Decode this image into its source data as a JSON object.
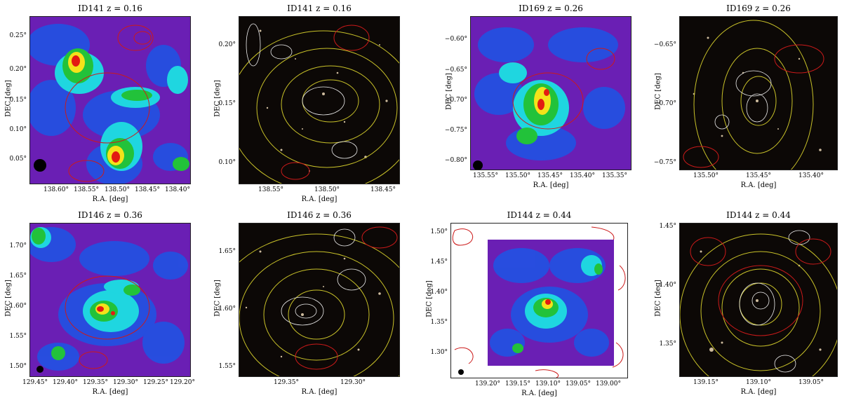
{
  "panels": [
    {
      "title": "ID141    z = 0.16",
      "kind": "density",
      "ylabel": "DEC [deg]",
      "xlabel": "R.A. [deg]",
      "yticks": [
        "0.25°",
        "0.20°",
        "0.15°",
        "0.10°",
        "0.05°"
      ],
      "xticks": [
        "138.60°",
        "138.55°",
        "138.50°",
        "138.45°",
        "138.40°"
      ]
    },
    {
      "title": "ID141    z = 0.16",
      "kind": "optical",
      "ylabel": "DEC [deg]",
      "xlabel": "R.A. [deg]",
      "yticks": [
        "0.20°",
        "0.15°",
        "0.10°"
      ],
      "xticks": [
        "138.55°",
        "138.50°",
        "138.45°"
      ]
    },
    {
      "title": "ID169    z = 0.26",
      "kind": "density",
      "ylabel": "DEC [deg]",
      "xlabel": "R.A. [deg]",
      "yticks": [
        "−0.60°",
        "−0.65°",
        "−0.70°",
        "−0.75°",
        "−0.80°"
      ],
      "xticks": [
        "135.55°",
        "135.50°",
        "135.45°",
        "135.40°",
        "135.35°"
      ]
    },
    {
      "title": "ID169    z = 0.26",
      "kind": "optical",
      "ylabel": "DEC [deg]",
      "xlabel": "R.A. [deg]",
      "yticks": [
        "−0.65°",
        "−0.70°",
        "−0.75°"
      ],
      "xticks": [
        "135.50°",
        "135.45°",
        "135.40°"
      ]
    },
    {
      "title": "ID146    z = 0.36",
      "kind": "density",
      "ylabel": "DEC [deg]",
      "xlabel": "R.A. [deg]",
      "yticks": [
        "1.70°",
        "1.65°",
        "1.60°",
        "1.55°",
        "1.50°"
      ],
      "xticks": [
        "129.45°",
        "129.40°",
        "129.35°",
        "129.30°",
        "129.25°",
        "129.20°"
      ]
    },
    {
      "title": "ID146    z = 0.36",
      "kind": "optical",
      "ylabel": "DEC [deg]",
      "xlabel": "R.A. [deg]",
      "yticks": [
        "1.65°",
        "1.60°",
        "1.55°"
      ],
      "xticks": [
        "129.35°",
        "129.30°"
      ]
    },
    {
      "title": "ID144    z = 0.44",
      "kind": "density-framed",
      "ylabel": "DEC [deg]",
      "xlabel": "R.A. [deg]",
      "yticks": [
        "1.50°",
        "1.45°",
        "1.40°",
        "1.35°",
        "1.30°"
      ],
      "xticks": [
        "139.20°",
        "139.15°",
        "139.10°",
        "139.05°",
        "139.00°"
      ]
    },
    {
      "title": "ID144    z = 0.44",
      "kind": "optical",
      "ylabel": "DEC [deg]",
      "xlabel": "R.A. [deg]",
      "yticks": [
        "1.45°",
        "1.40°",
        "1.35°"
      ],
      "xticks": [
        "139.15°",
        "139.10°",
        "139.05°"
      ]
    }
  ],
  "colors": {
    "density_bg": "#6a1fb4",
    "density_blue": "#1c56e6",
    "density_cyan": "#1fd6e0",
    "density_green": "#22c23a",
    "density_yellow": "#f4e21a",
    "density_red": "#e31b12",
    "optical_bg": "#0c0806",
    "contour_red": "#cc1a1a",
    "contour_yellow": "#c9c229",
    "contour_white": "#eeeeee"
  }
}
